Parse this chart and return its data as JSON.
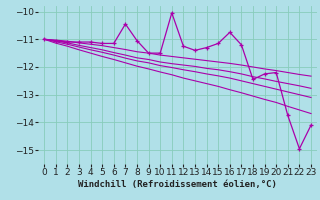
{
  "title": "",
  "xlabel": "Windchill (Refroidissement éolien,°C)",
  "ylabel": "",
  "bg_color": "#b0e0e8",
  "grid_color": "#88ccbb",
  "line_color": "#aa00aa",
  "x": [
    0,
    1,
    2,
    3,
    4,
    5,
    6,
    7,
    8,
    9,
    10,
    11,
    12,
    13,
    14,
    15,
    16,
    17,
    18,
    19,
    20,
    21,
    22,
    23
  ],
  "y_main": [
    -11.0,
    -11.05,
    -11.1,
    -11.1,
    -11.1,
    -11.15,
    -11.15,
    -10.45,
    -11.05,
    -11.5,
    -11.5,
    -10.05,
    -11.25,
    -11.4,
    -11.3,
    -11.15,
    -10.75,
    -11.2,
    -12.45,
    -12.25,
    -12.2,
    -13.75,
    -14.95,
    -14.1
  ],
  "y_line1": [
    -11.0,
    -11.03,
    -11.07,
    -11.13,
    -11.18,
    -11.23,
    -11.3,
    -11.37,
    -11.45,
    -11.5,
    -11.57,
    -11.62,
    -11.67,
    -11.72,
    -11.77,
    -11.82,
    -11.87,
    -11.93,
    -12.0,
    -12.07,
    -12.13,
    -12.2,
    -12.27,
    -12.33
  ],
  "y_line2": [
    -11.0,
    -11.06,
    -11.13,
    -11.22,
    -11.3,
    -11.38,
    -11.48,
    -11.57,
    -11.67,
    -11.73,
    -11.82,
    -11.88,
    -11.93,
    -11.98,
    -12.05,
    -12.1,
    -12.17,
    -12.25,
    -12.35,
    -12.43,
    -12.52,
    -12.6,
    -12.68,
    -12.77
  ],
  "y_line3": [
    -11.0,
    -11.09,
    -11.18,
    -11.28,
    -11.38,
    -11.47,
    -11.57,
    -11.68,
    -11.78,
    -11.85,
    -11.95,
    -12.02,
    -12.1,
    -12.17,
    -12.25,
    -12.32,
    -12.4,
    -12.5,
    -12.6,
    -12.7,
    -12.8,
    -12.9,
    -13.0,
    -13.1
  ],
  "y_line4": [
    -11.0,
    -11.14,
    -11.25,
    -11.38,
    -11.5,
    -11.62,
    -11.73,
    -11.85,
    -11.97,
    -12.07,
    -12.18,
    -12.28,
    -12.4,
    -12.5,
    -12.6,
    -12.7,
    -12.82,
    -12.93,
    -13.05,
    -13.17,
    -13.28,
    -13.42,
    -13.55,
    -13.68
  ],
  "ylim": [
    -15.5,
    -9.8
  ],
  "xlim": [
    -0.5,
    23.5
  ],
  "yticks": [
    -10,
    -11,
    -12,
    -13,
    -14,
    -15
  ],
  "xticks": [
    0,
    1,
    2,
    3,
    4,
    5,
    6,
    7,
    8,
    9,
    10,
    11,
    12,
    13,
    14,
    15,
    16,
    17,
    18,
    19,
    20,
    21,
    22,
    23
  ],
  "tick_fontsize": 6.5,
  "xlabel_fontsize": 6.5
}
